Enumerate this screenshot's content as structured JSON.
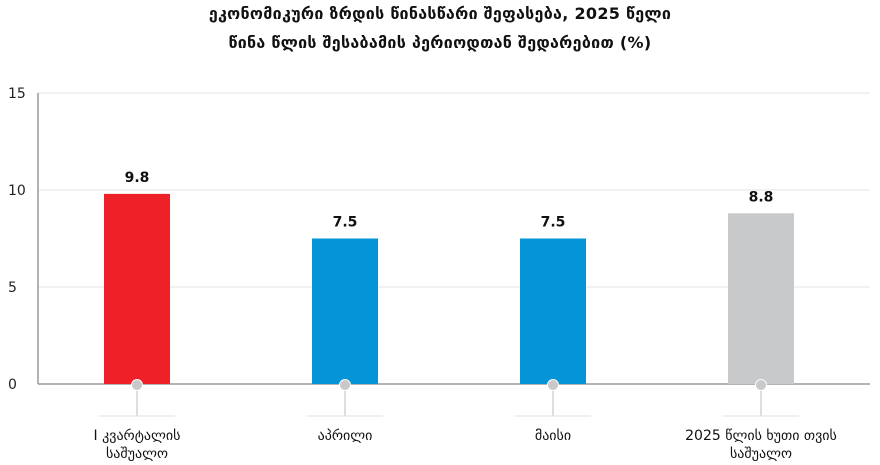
{
  "chart_data": {
    "type": "bar",
    "title_line1": "ეკონომიკური ზრდის წინასწარი შეფასება, 2025 წელი",
    "title_line2": "წინა წლის შესაბამის პერიოდთან შედარებით (%)",
    "categories": [
      [
        "I კვარტალის",
        "საშუალო"
      ],
      [
        "აპრილი"
      ],
      [
        "მაისი"
      ],
      [
        "2025 წლის ხუთი თვის",
        "საშუალო"
      ]
    ],
    "values": [
      9.8,
      7.5,
      7.5,
      8.8
    ],
    "value_labels": [
      "9.8",
      "7.5",
      "7.5",
      "8.8"
    ],
    "bar_colors": [
      "#ee2129",
      "#0595d6",
      "#0595d6",
      "#c8c9cb"
    ],
    "yticks": [
      0,
      5,
      10,
      15
    ],
    "ylim": [
      0,
      15
    ],
    "grid": true,
    "xlabel": "",
    "ylabel": ""
  }
}
